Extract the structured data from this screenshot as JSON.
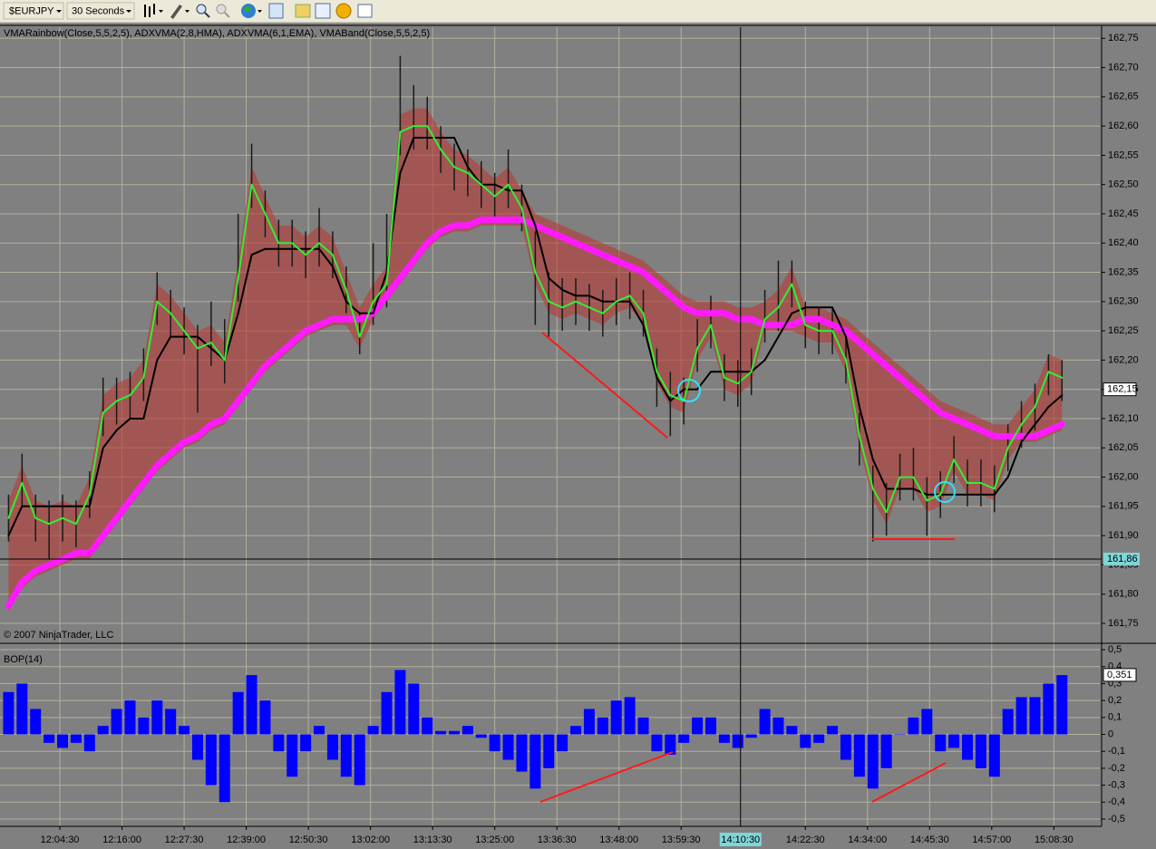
{
  "toolbar": {
    "symbol": "$EURJPY",
    "interval": "30 Seconds"
  },
  "chart_data": [
    {
      "type": "line",
      "title": "VMARainbow(Close,5,5,2,5), ADXVMA(2,8,HMA), ADXVMA(6,1,EMA), VMABand(Close,5,5,2,5)",
      "footer": "© 2007 NinjaTrader, LLC",
      "grid": true,
      "x": [
        "11:55:00",
        "11:57:30",
        "12:00:00",
        "12:02:30",
        "12:05:00",
        "12:07:30",
        "12:10:00",
        "12:12:30",
        "12:15:00",
        "12:17:30",
        "12:20:00",
        "12:22:30",
        "12:25:00",
        "12:27:30",
        "12:30:00",
        "12:32:30",
        "12:35:00",
        "12:37:30",
        "12:40:00",
        "12:42:30",
        "12:45:00",
        "12:47:30",
        "12:50:00",
        "12:52:30",
        "12:55:00",
        "12:57:30",
        "13:00:00",
        "13:02:30",
        "13:05:00",
        "13:07:30",
        "13:10:00",
        "13:12:30",
        "13:15:00",
        "13:17:30",
        "13:20:00",
        "13:22:30",
        "13:25:00",
        "13:27:30",
        "13:30:00",
        "13:32:30",
        "13:35:00",
        "13:37:30",
        "13:40:00",
        "13:42:30",
        "13:45:00",
        "13:47:30",
        "13:50:00",
        "13:52:30",
        "13:55:00",
        "13:57:30",
        "14:00:00",
        "14:02:30",
        "14:05:00",
        "14:07:30",
        "14:10:00",
        "14:12:30",
        "14:15:00",
        "14:17:30",
        "14:20:00",
        "14:22:30",
        "14:25:00",
        "14:27:30",
        "14:30:00",
        "14:32:30",
        "14:35:00",
        "14:37:30",
        "14:40:00",
        "14:42:30",
        "14:45:00",
        "14:47:30",
        "14:50:00",
        "14:52:30",
        "14:55:00",
        "14:57:30",
        "15:00:00",
        "15:02:30",
        "15:05:00",
        "15:07:30",
        "15:10:00"
      ],
      "xlim": [
        "11:53:25",
        "15:17:00"
      ],
      "ylim": [
        161.719,
        162.769
      ],
      "yticks": [
        {
          "value": 161.75,
          "label": "161,75"
        },
        {
          "value": 161.8,
          "label": "161,80"
        },
        {
          "value": 161.85,
          "label": "161,85"
        },
        {
          "value": 161.9,
          "label": "161,90"
        },
        {
          "value": 161.95,
          "label": "161,95"
        },
        {
          "value": 162,
          "label": "162,00"
        },
        {
          "value": 162.05,
          "label": "162,05"
        },
        {
          "value": 162.1,
          "label": "162,10"
        },
        {
          "value": 162.15,
          "label": "162,15"
        },
        {
          "value": 162.2,
          "label": "162,20"
        },
        {
          "value": 162.25,
          "label": "162,25"
        },
        {
          "value": 162.3,
          "label": "162,30"
        },
        {
          "value": 162.35,
          "label": "162,35"
        },
        {
          "value": 162.4,
          "label": "162,40"
        },
        {
          "value": 162.45,
          "label": "162,45"
        },
        {
          "value": 162.5,
          "label": "162,50"
        },
        {
          "value": 162.55,
          "label": "162,55"
        },
        {
          "value": 162.6,
          "label": "162,60"
        },
        {
          "value": 162.65,
          "label": "162,65"
        },
        {
          "value": 162.7,
          "label": "162,70"
        },
        {
          "value": 162.75,
          "label": "162,75"
        }
      ],
      "cursor_y": {
        "value": 161.86,
        "label": "161,86"
      },
      "last": {
        "value": 162.15,
        "label": "162,15"
      },
      "series": [
        {
          "kind": "band",
          "color": "#b83a36",
          "upper": [
            161.96,
            162.02,
            161.96,
            161.95,
            161.96,
            161.95,
            162.0,
            162.14,
            162.16,
            162.17,
            162.2,
            162.33,
            162.31,
            162.28,
            162.25,
            162.26,
            162.23,
            162.37,
            162.53,
            162.48,
            162.43,
            162.43,
            162.41,
            162.43,
            162.41,
            162.35,
            162.29,
            162.33,
            162.36,
            162.62,
            162.63,
            162.63,
            162.59,
            162.56,
            162.55,
            162.53,
            162.51,
            162.53,
            162.49,
            162.45,
            162.44,
            162.43,
            162.42,
            162.41,
            162.4,
            162.39,
            162.38,
            162.37,
            162.35,
            162.33,
            162.31,
            162.3,
            162.3,
            162.3,
            162.29,
            162.29,
            162.3,
            162.32,
            162.36,
            162.29,
            162.29,
            162.28,
            162.27,
            162.25,
            162.23,
            162.21,
            162.19,
            162.17,
            162.15,
            162.13,
            162.12,
            162.11,
            162.1,
            162.09,
            162.09,
            162.12,
            162.15,
            162.21,
            162.2
          ],
          "lower": [
            161.77,
            161.81,
            161.83,
            161.84,
            161.85,
            161.86,
            161.86,
            161.89,
            161.92,
            161.95,
            161.98,
            162.01,
            162.03,
            162.05,
            162.06,
            162.08,
            162.09,
            162.12,
            162.15,
            162.18,
            162.2,
            162.22,
            162.24,
            162.25,
            162.26,
            162.26,
            162.22,
            162.27,
            162.3,
            162.33,
            162.36,
            162.39,
            162.41,
            162.42,
            162.42,
            162.43,
            162.43,
            162.43,
            162.43,
            162.33,
            162.28,
            162.27,
            162.28,
            162.27,
            162.26,
            162.28,
            162.29,
            162.26,
            162.16,
            162.12,
            162.11,
            162.2,
            162.24,
            162.15,
            162.14,
            162.16,
            162.25,
            162.25,
            162.25,
            162.24,
            162.23,
            162.23,
            162.18,
            162.05,
            161.96,
            161.92,
            161.98,
            161.98,
            161.94,
            161.95,
            162.01,
            161.97,
            161.97,
            161.96,
            162.03,
            162.06,
            162.06,
            162.07,
            162.08
          ]
        },
        {
          "kind": "range",
          "color": "#1a1a1a",
          "high": [
            161.97,
            162.04,
            161.97,
            161.96,
            161.97,
            161.96,
            162.01,
            162.17,
            162.17,
            162.18,
            162.22,
            162.35,
            162.32,
            162.29,
            162.26,
            162.3,
            162.27,
            162.45,
            162.57,
            162.49,
            162.44,
            162.44,
            162.42,
            162.46,
            162.42,
            162.36,
            162.28,
            162.4,
            162.45,
            162.72,
            162.67,
            162.65,
            162.6,
            162.57,
            162.56,
            162.54,
            162.52,
            162.56,
            162.5,
            162.42,
            162.35,
            162.34,
            162.34,
            162.33,
            162.32,
            162.34,
            162.35,
            162.32,
            162.22,
            162.18,
            162.17,
            162.27,
            162.31,
            162.21,
            162.2,
            162.22,
            162.32,
            162.37,
            162.37,
            162.3,
            162.29,
            162.29,
            162.24,
            162.11,
            162.02,
            161.99,
            162.04,
            162.05,
            162.0,
            162.01,
            162.07,
            162.03,
            162.03,
            162.02,
            162.09,
            162.13,
            162.16,
            162.21,
            162.2
          ],
          "low": [
            161.89,
            161.95,
            161.89,
            161.86,
            161.89,
            161.88,
            161.93,
            162.07,
            162.09,
            162.1,
            162.13,
            162.26,
            162.24,
            162.21,
            162.11,
            162.19,
            162.16,
            162.3,
            162.46,
            162.41,
            162.36,
            162.36,
            162.34,
            162.36,
            162.34,
            162.28,
            162.21,
            162.26,
            162.29,
            162.55,
            162.56,
            162.56,
            162.52,
            162.49,
            162.48,
            162.46,
            162.44,
            162.46,
            162.42,
            162.26,
            162.24,
            162.25,
            162.26,
            162.25,
            162.24,
            162.26,
            162.27,
            162.24,
            162.12,
            162.07,
            162.09,
            162.18,
            162.22,
            162.13,
            162.12,
            162.14,
            162.23,
            162.25,
            162.29,
            162.22,
            162.21,
            162.21,
            162.16,
            162.02,
            161.89,
            161.9,
            161.96,
            161.96,
            161.9,
            161.93,
            161.99,
            161.95,
            161.95,
            161.94,
            162.01,
            162.05,
            162.08,
            162.14,
            162.13
          ]
        },
        {
          "kind": "line",
          "color": "#ff1aff",
          "width": 7,
          "values": [
            161.78,
            161.82,
            161.84,
            161.85,
            161.86,
            161.87,
            161.87,
            161.9,
            161.93,
            161.96,
            161.99,
            162.02,
            162.04,
            162.06,
            162.07,
            162.09,
            162.1,
            162.13,
            162.16,
            162.19,
            162.21,
            162.23,
            162.25,
            162.26,
            162.27,
            162.27,
            162.27,
            162.28,
            162.31,
            162.34,
            162.37,
            162.4,
            162.42,
            162.43,
            162.43,
            162.44,
            162.44,
            162.44,
            162.44,
            162.43,
            162.42,
            162.41,
            162.4,
            162.39,
            162.38,
            162.37,
            162.36,
            162.35,
            162.33,
            162.31,
            162.29,
            162.28,
            162.28,
            162.28,
            162.27,
            162.27,
            162.26,
            162.26,
            162.26,
            162.27,
            162.27,
            162.26,
            162.25,
            162.23,
            162.21,
            162.19,
            162.17,
            162.15,
            162.13,
            162.11,
            162.1,
            162.09,
            162.08,
            162.07,
            162.07,
            162.07,
            162.07,
            162.08,
            162.09
          ]
        },
        {
          "kind": "line",
          "color": "#000000",
          "width": 2,
          "values": [
            161.9,
            161.95,
            161.95,
            161.95,
            161.95,
            161.95,
            161.95,
            162.05,
            162.08,
            162.1,
            162.1,
            162.2,
            162.24,
            162.24,
            162.24,
            162.22,
            162.2,
            162.28,
            162.38,
            162.39,
            162.39,
            162.39,
            162.39,
            162.39,
            162.36,
            162.3,
            162.28,
            162.28,
            162.35,
            162.52,
            162.58,
            162.58,
            162.58,
            162.58,
            162.53,
            162.5,
            162.5,
            162.49,
            162.49,
            162.43,
            162.34,
            162.32,
            162.31,
            162.31,
            162.3,
            162.3,
            162.3,
            162.26,
            162.17,
            162.13,
            162.15,
            162.15,
            162.18,
            162.18,
            162.18,
            162.18,
            162.2,
            162.24,
            162.28,
            162.29,
            162.29,
            162.29,
            162.24,
            162.12,
            162.03,
            161.98,
            161.98,
            161.98,
            161.97,
            161.97,
            161.97,
            161.97,
            161.97,
            161.97,
            162.0,
            162.06,
            162.09,
            162.12,
            162.14
          ]
        },
        {
          "kind": "line",
          "color": "#33ee33",
          "width": 2,
          "values": [
            161.93,
            161.99,
            161.93,
            161.92,
            161.93,
            161.92,
            161.97,
            162.11,
            162.13,
            162.14,
            162.17,
            162.3,
            162.28,
            162.25,
            162.22,
            162.23,
            162.2,
            162.34,
            162.5,
            162.45,
            162.4,
            162.4,
            162.38,
            162.4,
            162.38,
            162.32,
            162.24,
            162.3,
            162.33,
            162.59,
            162.6,
            162.6,
            162.56,
            162.53,
            162.52,
            162.5,
            162.48,
            162.5,
            162.46,
            162.35,
            162.3,
            162.29,
            162.3,
            162.29,
            162.28,
            162.3,
            162.31,
            162.28,
            162.18,
            162.14,
            162.13,
            162.22,
            162.26,
            162.17,
            162.16,
            162.18,
            162.27,
            162.29,
            162.33,
            162.26,
            162.25,
            162.25,
            162.2,
            162.07,
            161.98,
            161.94,
            162.0,
            162.0,
            161.96,
            161.97,
            162.03,
            161.99,
            161.99,
            161.98,
            162.05,
            162.09,
            162.12,
            162.18,
            162.17
          ]
        }
      ]
    },
    {
      "type": "bar",
      "title": "BOP(14)",
      "color": "#0000ff",
      "grid": true,
      "x": [
        "11:55:00",
        "11:57:30",
        "12:00:00",
        "12:02:30",
        "12:05:00",
        "12:07:30",
        "12:10:00",
        "12:12:30",
        "12:15:00",
        "12:17:30",
        "12:20:00",
        "12:22:30",
        "12:25:00",
        "12:27:30",
        "12:30:00",
        "12:32:30",
        "12:35:00",
        "12:37:30",
        "12:40:00",
        "12:42:30",
        "12:45:00",
        "12:47:30",
        "12:50:00",
        "12:52:30",
        "12:55:00",
        "12:57:30",
        "13:00:00",
        "13:02:30",
        "13:05:00",
        "13:07:30",
        "13:10:00",
        "13:12:30",
        "13:15:00",
        "13:17:30",
        "13:20:00",
        "13:22:30",
        "13:25:00",
        "13:27:30",
        "13:30:00",
        "13:32:30",
        "13:35:00",
        "13:37:30",
        "13:40:00",
        "13:42:30",
        "13:45:00",
        "13:47:30",
        "13:50:00",
        "13:52:30",
        "13:55:00",
        "13:57:30",
        "14:00:00",
        "14:02:30",
        "14:05:00",
        "14:07:30",
        "14:10:00",
        "14:12:30",
        "14:15:00",
        "14:17:30",
        "14:20:00",
        "14:22:30",
        "14:25:00",
        "14:27:30",
        "14:30:00",
        "14:32:30",
        "14:35:00",
        "14:37:30",
        "14:40:00",
        "14:42:30",
        "14:45:00",
        "14:47:30",
        "14:50:00",
        "14:52:30",
        "14:55:00",
        "14:57:30",
        "15:00:00",
        "15:02:30",
        "15:05:00",
        "15:07:30",
        "15:10:00"
      ],
      "values": [
        0.25,
        0.3,
        0.15,
        -0.05,
        -0.08,
        -0.05,
        -0.1,
        0.05,
        0.15,
        0.2,
        0.1,
        0.2,
        0.15,
        0.05,
        -0.15,
        -0.3,
        -0.4,
        0.25,
        0.35,
        0.2,
        -0.1,
        -0.25,
        -0.1,
        0.05,
        -0.15,
        -0.25,
        -0.3,
        0.05,
        0.25,
        0.38,
        0.3,
        0.1,
        0.02,
        0.02,
        0.05,
        -0.02,
        -0.1,
        -0.15,
        -0.22,
        -0.32,
        -0.2,
        -0.1,
        0.05,
        0.15,
        0.1,
        0.2,
        0.22,
        0.1,
        -0.1,
        -0.12,
        -0.05,
        0.1,
        0.1,
        -0.05,
        -0.08,
        -0.02,
        0.15,
        0.1,
        0.05,
        -0.08,
        -0.05,
        0.05,
        -0.15,
        -0.25,
        -0.32,
        -0.2,
        0.0,
        0.1,
        0.15,
        -0.1,
        -0.08,
        -0.15,
        -0.2,
        -0.25,
        0.15,
        0.22,
        0.22,
        0.3,
        0.35
      ],
      "xlim": [
        "11:53:25",
        "15:17:00"
      ],
      "xticks": [
        "12:04:30",
        "12:16:00",
        "12:27:30",
        "12:39:00",
        "12:50:30",
        "13:02:00",
        "13:13:30",
        "13:25:00",
        "13:36:30",
        "13:48:00",
        "13:59:30",
        "14:22:30",
        "14:34:00",
        "14:45:30",
        "14:57:00",
        "15:08:30"
      ],
      "cursor_x": "14:10:30",
      "ylim": [
        -0.543,
        0.527
      ],
      "yticks": [
        {
          "value": -0.5,
          "label": "-0,5"
        },
        {
          "value": -0.4,
          "label": "-0,4"
        },
        {
          "value": -0.3,
          "label": "-0,3"
        },
        {
          "value": -0.2,
          "label": "-0,2"
        },
        {
          "value": -0.1,
          "label": "-0,1"
        },
        0,
        {
          "value": 0.1,
          "label": "0,1"
        },
        {
          "value": 0.2,
          "label": "0,2"
        },
        {
          "value": 0.3,
          "label": "0,3"
        },
        {
          "value": 0.4,
          "label": "0,4"
        },
        {
          "value": 0.5,
          "label": "0,5"
        }
      ],
      "last": {
        "value": 0.351,
        "label": "0,351"
      }
    }
  ]
}
